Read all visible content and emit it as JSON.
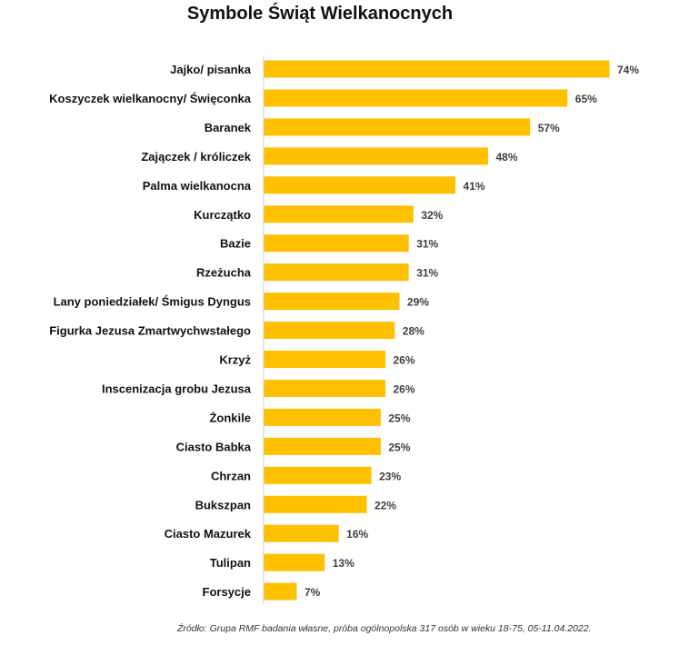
{
  "chart_data": {
    "type": "bar",
    "orientation": "horizontal",
    "title": "Symbole Świąt Wielkanocnych",
    "categories": [
      "Jajko/ pisanka",
      "Koszyczek wielkanocny/ Święconka",
      "Baranek",
      "Zajączek / króliczek",
      "Palma wielkanocna",
      "Kurczątko",
      "Bazie",
      "Rzeżucha",
      "Lany poniedziałek/ Śmigus Dyngus",
      "Figurka Jezusa Zmartwychwstałego",
      "Krzyż",
      "Inscenizacja grobu Jezusa",
      "Żonkile",
      "Ciasto Babka",
      "Chrzan",
      "Bukszpan",
      "Ciasto Mazurek",
      "Tulipan",
      "Forsycje"
    ],
    "values": [
      74,
      65,
      57,
      48,
      41,
      32,
      31,
      31,
      29,
      28,
      26,
      26,
      25,
      25,
      23,
      22,
      16,
      13,
      7
    ],
    "value_suffix": "%",
    "xlabel": "",
    "ylabel": "",
    "xlim": [
      0,
      74
    ],
    "grid": false,
    "bar_color": "#FFC000",
    "source": "Źródło: Grupa RMF badania własne, próba ogólnopolska 317 osób w wieku 18-75, 05-11.04.2022."
  }
}
